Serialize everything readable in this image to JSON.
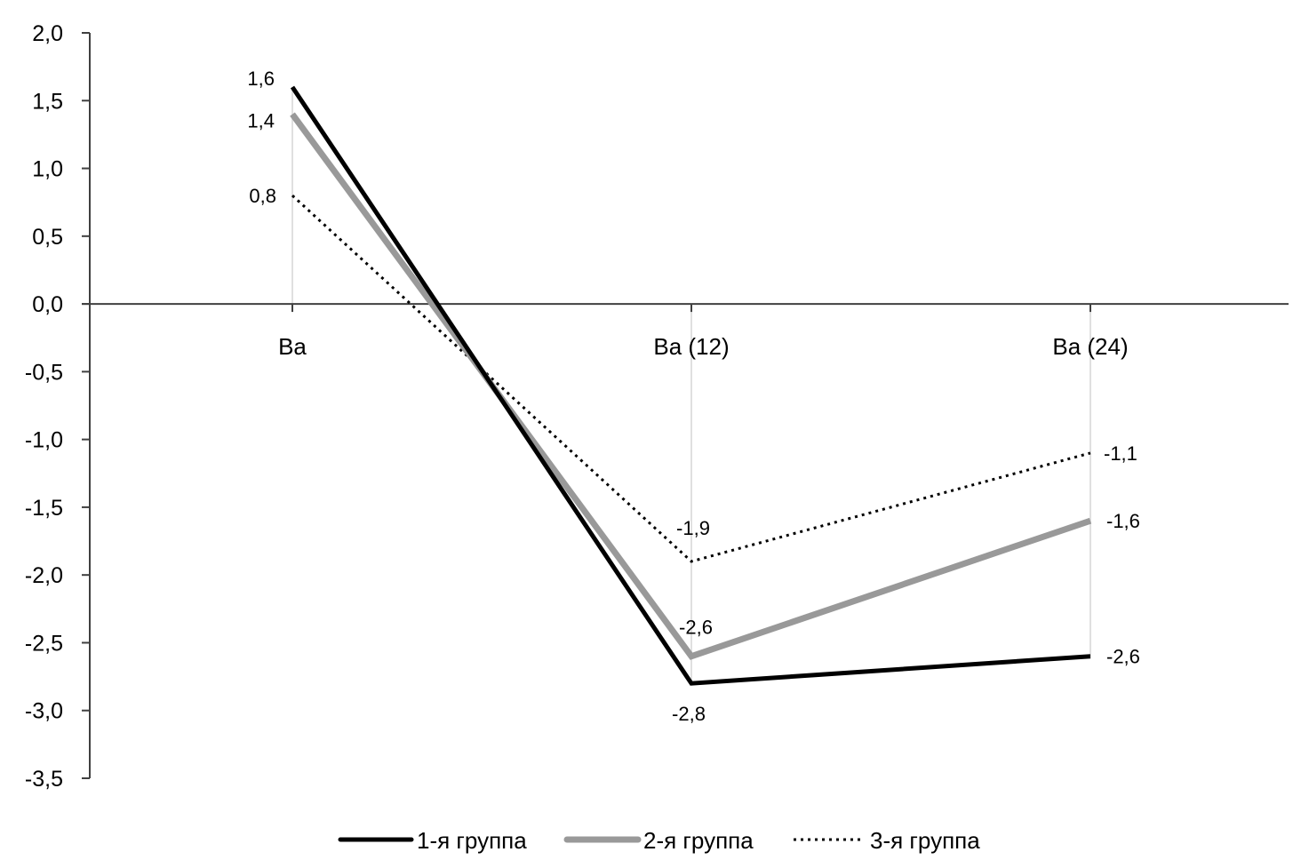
{
  "chart_data": {
    "type": "line",
    "title": "",
    "xlabel": "",
    "ylabel": "",
    "categories": [
      "Ba",
      "Ba (12)",
      "Ba (24)"
    ],
    "ylim": [
      -3.5,
      2.0
    ],
    "ytick_step": 0.5,
    "yticks": [
      "2,0",
      "1,5",
      "1,0",
      "0,5",
      "0,0",
      "-0,5",
      "-1,0",
      "-1,5",
      "-2,0",
      "-2,5",
      "-3,0",
      "-3,5"
    ],
    "grid": false,
    "legend_position": "bottom",
    "drop_lines": true,
    "series": [
      {
        "name": "1-я группа",
        "values": [
          1.6,
          -2.8,
          -2.6
        ],
        "labels": [
          "1,6",
          "-2,8",
          "-2,6"
        ],
        "color": "#000000",
        "style": "solid-thick"
      },
      {
        "name": "2-я группа",
        "values": [
          1.4,
          -2.6,
          -1.6
        ],
        "labels": [
          "1,4",
          "-2,6",
          "-1,6"
        ],
        "color": "#999999",
        "style": "solid-thicker"
      },
      {
        "name": "3-я группа",
        "values": [
          0.8,
          -1.9,
          -1.1
        ],
        "labels": [
          "0,8",
          "-1,9",
          "-1,1"
        ],
        "color": "#000000",
        "style": "dotted"
      }
    ]
  }
}
